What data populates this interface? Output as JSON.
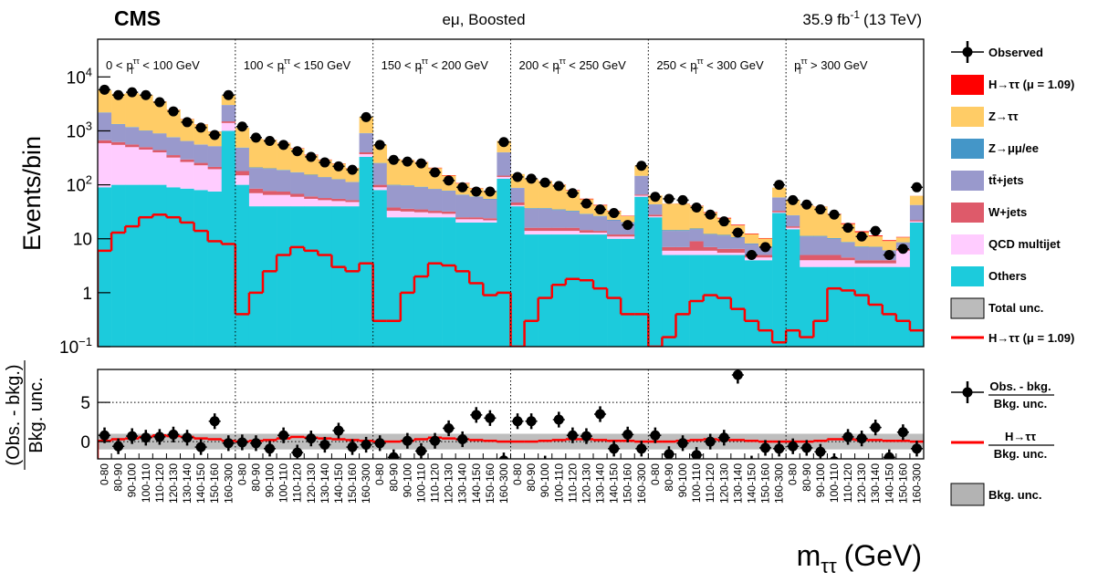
{
  "chart_data": {
    "type": "stacked_step_bar",
    "header": {
      "experiment": "CMS",
      "channel": "eμ, Boosted",
      "lumi": "35.9 fb",
      "lumi_sup": "-1",
      "energy": "(13 TeV)"
    },
    "y_label": "Events/bin",
    "x_label": {
      "base": "m",
      "sub": "ττ",
      "unit": "(GeV)"
    },
    "log_y": true,
    "ylim": [
      0.1,
      50000
    ],
    "yticks": [
      {
        "value": 0.1,
        "label": "10",
        "exp": "−1"
      },
      1,
      10,
      {
        "value": 100,
        "label": "10",
        "exp": "2"
      },
      {
        "value": 1000,
        "label": "10",
        "exp": "3"
      },
      {
        "value": 10000,
        "label": "10",
        "exp": "4"
      }
    ],
    "region_var": {
      "base": "p",
      "sub": "T",
      "sup": "ττ"
    },
    "regions": [
      {
        "left": "0 <",
        "right": "< 100 GeV"
      },
      {
        "left": "100 <",
        "right": "< 150 GeV"
      },
      {
        "left": "150 <",
        "right": "< 200 GeV"
      },
      {
        "left": "200 <",
        "right": "< 250 GeV"
      },
      {
        "left": "250 <",
        "right": "< 300 GeV"
      },
      {
        "right": "> 300 GeV"
      }
    ],
    "categories": [
      "0-80",
      "80-90",
      "90-100",
      "100-110",
      "110-120",
      "120-130",
      "130-140",
      "140-150",
      "150-160",
      "160-300",
      "0-80",
      "80-90",
      "90-100",
      "100-110",
      "110-120",
      "120-130",
      "130-140",
      "140-150",
      "150-160",
      "160-300",
      "0-80",
      "80-90",
      "90-100",
      "100-110",
      "110-120",
      "120-130",
      "130-140",
      "140-150",
      "150-160",
      "160-300",
      "0-80",
      "80-90",
      "90-100",
      "100-110",
      "110-120",
      "120-130",
      "130-140",
      "140-150",
      "150-160",
      "160-300",
      "0-80",
      "80-90",
      "90-100",
      "100-110",
      "110-120",
      "120-130",
      "130-140",
      "140-150",
      "150-160",
      "160-300",
      "0-80",
      "80-90",
      "90-100",
      "100-110",
      "110-120",
      "120-130",
      "130-140",
      "140-150",
      "150-160",
      "160-300"
    ],
    "series": [
      {
        "name": "Others",
        "color": "#1ccbdc",
        "values": [
          90,
          100,
          100,
          100,
          100,
          90,
          85,
          80,
          75,
          1000,
          100,
          40,
          40,
          40,
          40,
          40,
          40,
          40,
          40,
          330,
          80,
          25,
          25,
          25,
          25,
          25,
          20,
          20,
          20,
          130,
          40,
          12,
          12,
          12,
          12,
          12,
          12,
          10,
          10,
          60,
          25,
          5,
          5,
          5,
          5,
          5,
          5,
          4,
          4,
          30,
          15,
          3,
          3,
          3,
          3,
          3,
          3,
          3,
          3,
          20
        ]
      },
      {
        "name": "QCD multijet",
        "color": "#ffccff",
        "values": [
          500,
          450,
          400,
          350,
          300,
          230,
          180,
          150,
          120,
          400,
          50,
          30,
          25,
          25,
          20,
          15,
          12,
          10,
          8,
          40,
          10,
          8,
          7,
          6,
          5,
          4,
          3,
          3,
          2,
          10,
          2,
          2,
          2,
          2,
          2,
          1,
          1,
          1,
          1,
          3,
          1,
          1,
          1,
          1,
          1,
          0.5,
          0.5,
          0.5,
          0.5,
          1,
          1,
          1,
          1,
          1,
          1,
          0.5,
          0.5,
          0.5,
          3,
          1
        ]
      },
      {
        "name": "W+jets",
        "color": "#de5a6a",
        "values": [
          80,
          70,
          60,
          50,
          40,
          35,
          30,
          25,
          20,
          100,
          30,
          15,
          12,
          10,
          8,
          6,
          5,
          5,
          4,
          30,
          10,
          5,
          4,
          4,
          3,
          3,
          2,
          2,
          2,
          8,
          5,
          2,
          2,
          2,
          2,
          1.5,
          1,
          1,
          1,
          3,
          2,
          1,
          1,
          3,
          1,
          1,
          1,
          0.5,
          0.5,
          2,
          1,
          1,
          1,
          1,
          0.5,
          0.5,
          0.5,
          0.5,
          0.5,
          1
        ]
      },
      {
        "name": "tt̄+jets",
        "color": "#9999cc",
        "values": [
          1500,
          700,
          600,
          500,
          450,
          400,
          350,
          300,
          300,
          1500,
          300,
          120,
          120,
          110,
          100,
          90,
          80,
          70,
          60,
          500,
          150,
          60,
          60,
          55,
          50,
          45,
          40,
          35,
          30,
          250,
          40,
          20,
          20,
          18,
          16,
          14,
          12,
          10,
          8,
          80,
          15,
          7,
          7,
          6,
          5,
          5,
          4,
          3,
          2,
          25,
          10,
          6,
          6,
          5,
          4,
          3,
          3,
          2,
          2,
          20
        ]
      },
      {
        "name": "Z→μμ/ee",
        "color": "#4496c8",
        "values": [
          30,
          20,
          20,
          15,
          10,
          10,
          5,
          5,
          5,
          20,
          10,
          5,
          5,
          4,
          3,
          3,
          2,
          2,
          1,
          10,
          4,
          2,
          2,
          2,
          1,
          1,
          1,
          1,
          1,
          3,
          1,
          1,
          1,
          1,
          1,
          0.5,
          0.5,
          0.5,
          0.3,
          1,
          0.5,
          0.5,
          0.5,
          0.5,
          0.3,
          0.3,
          0.2,
          0.2,
          0.1,
          0.5,
          0.3,
          0.3,
          0.3,
          0.3,
          0.2,
          0.2,
          0.1,
          0.1,
          0.1,
          0.3
        ]
      },
      {
        "name": "Z→ττ",
        "color": "#ffcc66",
        "values": [
          3500,
          3500,
          3800,
          3600,
          2600,
          1700,
          1000,
          750,
          450,
          1500,
          650,
          500,
          480,
          400,
          300,
          200,
          150,
          120,
          90,
          900,
          300,
          200,
          190,
          170,
          120,
          70,
          40,
          25,
          20,
          250,
          70,
          90,
          80,
          65,
          45,
          25,
          15,
          10,
          6,
          80,
          20,
          30,
          30,
          25,
          18,
          12,
          7,
          4,
          3,
          30,
          25,
          30,
          28,
          18,
          10,
          6,
          4,
          3,
          2,
          20
        ]
      },
      {
        "name": "H→ττ (μ = 1.09)",
        "color": "#ff0000",
        "values": [
          2,
          5,
          10,
          15,
          20,
          20,
          15,
          10,
          7,
          8,
          1,
          2,
          4,
          6,
          7,
          7,
          5,
          3,
          2,
          3,
          0.5,
          1,
          2,
          3,
          3.5,
          3,
          2,
          1,
          1,
          1,
          0.2,
          0.5,
          1,
          1.2,
          1.5,
          1.3,
          1,
          0.6,
          0.4,
          0.5,
          0.1,
          0.2,
          0.4,
          0.6,
          0.8,
          0.7,
          0.5,
          0.3,
          0.2,
          0.2,
          0.1,
          0.2,
          0.3,
          0.5,
          0.7,
          0.6,
          0.4,
          0.3,
          0.2,
          0.2
        ]
      }
    ],
    "observed": {
      "name": "Observed",
      "color": "#000000",
      "values": [
        5800,
        4600,
        5200,
        4600,
        3400,
        2300,
        1450,
        1150,
        840,
        4600,
        1200,
        750,
        650,
        550,
        420,
        330,
        260,
        220,
        190,
        1800,
        550,
        290,
        270,
        250,
        170,
        120,
        90,
        75,
        75,
        620,
        140,
        130,
        110,
        95,
        70,
        45,
        35,
        30,
        18,
        225,
        60,
        55,
        52,
        38,
        28,
        21,
        13,
        5,
        7,
        100,
        52,
        43,
        35,
        28,
        16,
        11,
        14,
        5,
        6.5,
        90
      ]
    },
    "total_unc": {
      "name": "Total unc.",
      "color": "#bbbbbb"
    },
    "signal": {
      "name": "H→ττ (μ = 1.09)",
      "color": "#ff0000",
      "values": [
        6,
        13,
        17,
        25,
        28,
        25,
        20,
        14,
        9,
        8,
        0.4,
        1,
        2.5,
        5,
        7,
        6,
        5,
        3,
        2.5,
        3.5,
        0.3,
        0.3,
        1,
        2,
        3.5,
        3.2,
        2.5,
        1.5,
        0.9,
        1,
        0.1,
        0.3,
        0.8,
        1.4,
        1.8,
        1.7,
        1.2,
        0.8,
        0.4,
        0.4,
        0.1,
        0.15,
        0.4,
        0.7,
        0.9,
        0.8,
        0.5,
        0.3,
        0.2,
        0.12,
        0.2,
        0.15,
        0.3,
        1.2,
        1.1,
        0.9,
        0.6,
        0.4,
        0.3,
        0.2
      ]
    },
    "ratio": {
      "y_label": {
        "numerator": "(Obs. - bkg.)",
        "denominator": "Bkg. unc."
      },
      "ylim": [
        -2.2,
        9.2
      ],
      "yticks": [
        0,
        5
      ],
      "grid": true,
      "values": [
        0.8,
        -0.6,
        0.7,
        0.5,
        0.6,
        0.9,
        0.5,
        -0.7,
        2.6,
        -0.2,
        -0.1,
        -0.2,
        -0.9,
        0.8,
        -1.4,
        0.4,
        -0.4,
        1.4,
        -0.7,
        -0.4,
        -0.2,
        -2.0,
        0.1,
        -1.2,
        0.1,
        1.7,
        0.3,
        3.4,
        3.0,
        -2.4,
        2.6,
        2.6,
        -2.8,
        2.8,
        0.8,
        0.7,
        3.5,
        -0.9,
        0.9,
        -0.9,
        0.8,
        -1.6,
        -0.2,
        -1.7,
        0.0,
        0.5,
        8.5,
        -2.8,
        -0.8,
        -0.9,
        -0.6,
        -0.8,
        -1.3,
        -2.5,
        0.6,
        0.4,
        1.8,
        -2.0,
        1.2,
        -0.9
      ],
      "errors": [
        1,
        1,
        1,
        1,
        1,
        1,
        1,
        1,
        1,
        1,
        1,
        1,
        1,
        1,
        1,
        1,
        1,
        1,
        1,
        1,
        1,
        1,
        1,
        1,
        1,
        1,
        1,
        1,
        1,
        1,
        1,
        1,
        1,
        1,
        1,
        1,
        1,
        1,
        1,
        1,
        1,
        1,
        1,
        1,
        1,
        1,
        1.1,
        1,
        1,
        1,
        1,
        1,
        1,
        1,
        1,
        1,
        1,
        1,
        1,
        1
      ],
      "signal_values": [
        0.1,
        0.3,
        0.4,
        0.6,
        0.8,
        0.7,
        0.6,
        0.4,
        0.3,
        0.1,
        0,
        0.1,
        0.2,
        0.4,
        0.6,
        0.5,
        0.4,
        0.3,
        0.2,
        0.1,
        0,
        0,
        0.1,
        0.3,
        0.5,
        0.4,
        0.3,
        0.2,
        0.1,
        0,
        0,
        0,
        0.1,
        0.2,
        0.3,
        0.3,
        0.2,
        0.1,
        0.1,
        0,
        0,
        0,
        0.1,
        0.2,
        0.3,
        0.2,
        0.2,
        0.1,
        0,
        0,
        0,
        0,
        0.1,
        0.3,
        0.3,
        0.2,
        0.2,
        0.1,
        0.1,
        0
      ],
      "band": {
        "low": -1,
        "high": 1,
        "color": "#b3b3b3"
      },
      "legend": {
        "observed": {
          "numerator": "Obs. - bkg.",
          "denominator": "Bkg. unc."
        },
        "signal": {
          "numerator": "H→ττ",
          "denominator": "Bkg. unc."
        },
        "band": "Bkg. unc."
      }
    }
  }
}
